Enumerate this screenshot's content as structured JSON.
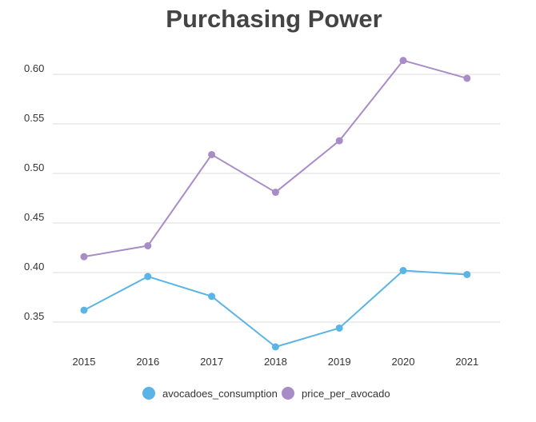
{
  "chart_data": {
    "type": "line",
    "title": "Purchasing Power",
    "xlabel": "",
    "ylabel": "",
    "categories": [
      "2015",
      "2016",
      "2017",
      "2018",
      "2019",
      "2020",
      "2021"
    ],
    "y_ticks": [
      "0.35",
      "0.40",
      "0.45",
      "0.50",
      "0.55",
      "0.60"
    ],
    "ylim": [
      0.325,
      0.625
    ],
    "grid": "horizontal",
    "legend_position": "bottom",
    "series": [
      {
        "name": "avocadoes_consumption",
        "color": "#5ab4e5",
        "values": [
          0.362,
          0.396,
          0.376,
          0.325,
          0.344,
          0.402,
          0.398
        ]
      },
      {
        "name": "price_per_avocado",
        "color": "#a88cc8",
        "values": [
          0.416,
          0.427,
          0.519,
          0.481,
          0.533,
          0.614,
          0.596
        ]
      }
    ]
  }
}
